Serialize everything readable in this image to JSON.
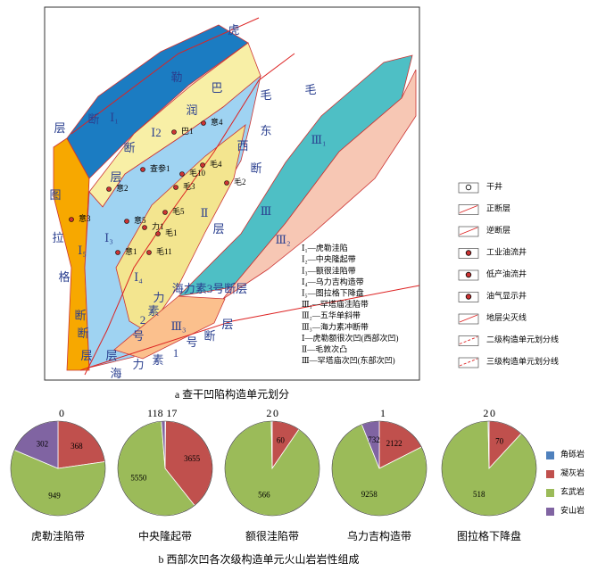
{
  "figure": {
    "caption_a": "a  查干凹陷构造单元划分",
    "caption_b": "b  西部次凹各次级构造单元火山岩岩性组成"
  },
  "map": {
    "labels": [
      "虎",
      "勒",
      "断",
      "层",
      "巴",
      "润",
      "西",
      "毛",
      "毛",
      "东",
      "断",
      "层",
      "图",
      "拉",
      "格",
      "断",
      "层",
      "海力素3号断层",
      "力",
      "素",
      "2",
      "号",
      "海",
      "力",
      "素",
      "1",
      "号",
      "断",
      "层",
      "Ⅰ₁",
      "Ⅰ2",
      "Ⅰ₃",
      "Ⅰ₄",
      "Ⅰ₅",
      "Ⅱ",
      "Ⅲ₁",
      "Ⅲ",
      "Ⅲ₂",
      "Ⅲ₃",
      "层",
      "断",
      "层",
      "断"
    ],
    "wells": [
      "意2",
      "查参1",
      "巴1",
      "意4",
      "毛10",
      "毛4",
      "毛2",
      "毛3",
      "毛5",
      "意5",
      "力1",
      "毛1",
      "意1",
      "毛11",
      "意3"
    ],
    "units": [
      "Ⅰ₁—虎勒洼陷",
      "Ⅰ₂—中央隆起带",
      "Ⅰ₃—额很洼陷带",
      "Ⅰ₄—乌力吉构造带",
      "Ⅰ₅—图拉格下降盘",
      "Ⅲ₁—罕塔庙洼陷带",
      "Ⅲ₂—五华单斜带",
      "Ⅲ₃—海力素冲断带",
      "Ⅰ—虎勒额很次凹(西部次凹)",
      "Ⅱ—毛敦次凸",
      "Ⅲ—罕塔庙次凹(东部次凹)"
    ],
    "legend": [
      "干井",
      "正断层",
      "逆断层",
      "工业油流井",
      "低产油流井",
      "油气显示井",
      "地层尖灭线",
      "二级构造单元划分线",
      "三级构造单元划分线"
    ]
  },
  "chart_data": [
    {
      "type": "pie",
      "title": "虎勒洼陷带",
      "categories": [
        "角砾岩",
        "凝灰岩",
        "玄武岩",
        "安山岩"
      ],
      "colors": [
        "#4f81bd",
        "#c0504d",
        "#9bbb59",
        "#8064a2"
      ],
      "values": [
        0,
        368,
        949,
        302
      ]
    },
    {
      "type": "pie",
      "title": "中央隆起带",
      "categories": [
        "角砾岩",
        "凝灰岩",
        "玄武岩",
        "安山岩"
      ],
      "colors": [
        "#4f81bd",
        "#c0504d",
        "#9bbb59",
        "#8064a2"
      ],
      "values": [
        17,
        3655,
        5550,
        118
      ]
    },
    {
      "type": "pie",
      "title": "额很洼陷带",
      "categories": [
        "角砾岩",
        "凝灰岩",
        "玄武岩",
        "安山岩"
      ],
      "colors": [
        "#4f81bd",
        "#c0504d",
        "#9bbb59",
        "#8064a2"
      ],
      "values": [
        0,
        60,
        566,
        2
      ]
    },
    {
      "type": "pie",
      "title": "乌力吉构造带",
      "categories": [
        "角砾岩",
        "凝灰岩",
        "玄武岩",
        "安山岩"
      ],
      "colors": [
        "#4f81bd",
        "#c0504d",
        "#9bbb59",
        "#8064a2"
      ],
      "values": [
        1,
        2122,
        9258,
        732
      ]
    },
    {
      "type": "pie",
      "title": "图拉格下降盘",
      "categories": [
        "角砾岩",
        "凝灰岩",
        "玄武岩",
        "安山岩"
      ],
      "colors": [
        "#4f81bd",
        "#c0504d",
        "#9bbb59",
        "#8064a2"
      ],
      "values": [
        0,
        70,
        518,
        2
      ]
    }
  ]
}
